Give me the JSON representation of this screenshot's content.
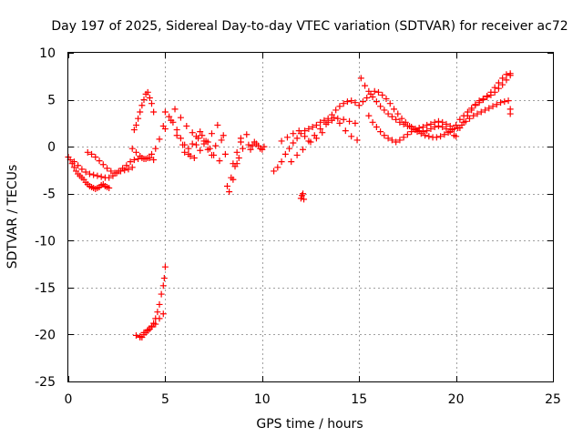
{
  "chart_data": {
    "type": "scatter",
    "title": "Day 197 of 2025, Sidereal Day-to-day VTEC variation (SDTVAR) for receiver ac72",
    "xlabel": "GPS time / hours",
    "ylabel": "SDTVAR / TECUs",
    "xlim": [
      0,
      25
    ],
    "ylim": [
      -25,
      10
    ],
    "xticks": [
      0,
      5,
      10,
      15,
      20,
      25
    ],
    "yticks": [
      10,
      5,
      0,
      -5,
      -10,
      -15,
      -20,
      -25
    ],
    "xtick_labels": [
      "0",
      "5",
      "10",
      "15",
      "20",
      "25"
    ],
    "ytick_labels": [
      "10",
      "5",
      "0",
      "-5",
      "-10",
      "-15",
      "-20",
      "-25"
    ],
    "grid": true,
    "marker": "+",
    "series": [
      {
        "name": "SDTVAR",
        "color": "#ff0000",
        "x": [
          0.0,
          0.1,
          0.2,
          0.3,
          0.4,
          0.5,
          0.6,
          0.7,
          0.8,
          0.9,
          1.0,
          1.1,
          1.2,
          1.3,
          1.4,
          1.5,
          1.6,
          1.7,
          1.8,
          1.9,
          2.0,
          2.1,
          0.3,
          0.5,
          0.7,
          0.9,
          1.1,
          1.3,
          1.5,
          1.7,
          1.9,
          2.1,
          2.3,
          2.5,
          2.7,
          2.9,
          3.1,
          3.3,
          1.0,
          1.2,
          1.4,
          1.6,
          1.8,
          2.0,
          2.2,
          2.4,
          2.6,
          2.8,
          3.0,
          3.2,
          3.4,
          3.6,
          3.8,
          4.0,
          4.2,
          4.4,
          3.4,
          3.5,
          3.6,
          3.7,
          3.8,
          3.9,
          4.0,
          4.1,
          4.2,
          4.3,
          4.4,
          3.5,
          3.7,
          3.9,
          4.1,
          4.3,
          4.5,
          4.7,
          4.9,
          3.7,
          3.8,
          3.9,
          4.0,
          4.1,
          4.2,
          4.3,
          4.4,
          4.5,
          4.6,
          4.7,
          4.8,
          4.9,
          4.95,
          5.0,
          3.3,
          3.5,
          3.7,
          3.9,
          4.1,
          4.3,
          4.5,
          4.7,
          4.9,
          5.0,
          5.2,
          5.4,
          5.6,
          5.8,
          6.0,
          6.2,
          6.4,
          6.6,
          6.8,
          7.0,
          7.2,
          7.4,
          5.0,
          5.3,
          5.6,
          5.9,
          6.2,
          6.5,
          6.8,
          7.1,
          7.4,
          7.7,
          8.0,
          5.5,
          5.8,
          6.1,
          6.4,
          6.7,
          7.0,
          7.3,
          7.6,
          7.9,
          6.0,
          6.3,
          6.6,
          6.9,
          7.2,
          7.5,
          7.8,
          8.1,
          8.2,
          8.4,
          8.6,
          8.8,
          9.0,
          8.3,
          8.5,
          8.7,
          8.9,
          8.5,
          8.7,
          8.9,
          9.2,
          9.3,
          9.4,
          9.5,
          9.6,
          9.7,
          9.8,
          9.9,
          10.0,
          10.1,
          10.6,
          10.8,
          11.0,
          11.2,
          11.4,
          11.6,
          11.8,
          12.0,
          12.2,
          12.4,
          12.6,
          12.8,
          13.0,
          13.2,
          13.4,
          13.6,
          13.8,
          14.0,
          14.2,
          14.4,
          14.6,
          14.8,
          15.0,
          11.0,
          11.3,
          11.6,
          11.9,
          12.2,
          12.5,
          12.8,
          13.1,
          13.4,
          13.7,
          14.0,
          14.3,
          14.6,
          14.9,
          11.5,
          11.8,
          12.1,
          12.4,
          12.7,
          13.0,
          13.3,
          13.6,
          13.9,
          14.2,
          14.5,
          14.8,
          12.0,
          12.05,
          12.1,
          12.15,
          15.1,
          15.3,
          15.5,
          15.7,
          15.9,
          16.1,
          16.3,
          16.5,
          16.7,
          16.9,
          17.1,
          17.3,
          17.5,
          17.7,
          17.9,
          18.1,
          18.3,
          18.5,
          18.7,
          18.9,
          19.1,
          19.3,
          19.5,
          19.7,
          19.9,
          15.5,
          15.7,
          15.9,
          16.1,
          16.3,
          16.5,
          16.7,
          16.9,
          17.1,
          17.3,
          17.5,
          17.7,
          17.9,
          18.1,
          18.3,
          18.5,
          18.7,
          18.9,
          19.1,
          19.3,
          19.5,
          19.7,
          19.9,
          15.2,
          15.4,
          15.6,
          15.8,
          16.0,
          16.2,
          16.4,
          16.6,
          16.8,
          17.0,
          17.2,
          17.4,
          17.6,
          17.8,
          18.0,
          18.2,
          18.4,
          18.6,
          18.8,
          19.0,
          19.2,
          19.4,
          19.6,
          19.8,
          20.0,
          20.2,
          20.4,
          20.6,
          20.8,
          21.0,
          21.2,
          21.4,
          21.6,
          21.8,
          22.0,
          22.2,
          22.4,
          22.6,
          22.8,
          20.0,
          20.2,
          20.4,
          20.6,
          20.8,
          21.0,
          21.2,
          21.4,
          21.6,
          21.8,
          22.0,
          22.2,
          22.4,
          22.6,
          22.8,
          20.1,
          20.3,
          20.5,
          20.7,
          20.9,
          21.1,
          21.3,
          21.5,
          21.7,
          21.9,
          22.1,
          22.3,
          22.5,
          22.7,
          22.8,
          22.8
        ],
        "y": [
          -1.1,
          -1.4,
          -1.8,
          -2.2,
          -2.6,
          -2.9,
          -3.1,
          -3.3,
          -3.5,
          -3.8,
          -4.0,
          -4.2,
          -4.3,
          -4.4,
          -4.5,
          -4.4,
          -4.3,
          -4.1,
          -4.0,
          -4.2,
          -4.3,
          -4.4,
          -1.6,
          -2.0,
          -2.4,
          -2.7,
          -2.9,
          -3.0,
          -3.1,
          -3.2,
          -3.3,
          -3.3,
          -3.1,
          -2.8,
          -2.6,
          -2.5,
          -2.4,
          -2.2,
          -0.6,
          -0.8,
          -1.1,
          -1.5,
          -1.9,
          -2.3,
          -2.6,
          -2.8,
          -2.6,
          -2.3,
          -2.0,
          -1.6,
          -1.4,
          -1.3,
          -1.2,
          -1.3,
          -1.2,
          -1.4,
          1.8,
          2.3,
          3.0,
          3.7,
          4.4,
          5.0,
          5.6,
          5.8,
          5.2,
          4.6,
          3.7,
          -20.1,
          -20.3,
          -19.8,
          -19.5,
          -19.2,
          -18.9,
          -18.3,
          -17.8,
          -20.2,
          -20.3,
          -20.0,
          -19.8,
          -19.6,
          -19.4,
          -19.1,
          -18.8,
          -18.3,
          -17.6,
          -16.8,
          -15.7,
          -14.8,
          -14.0,
          -12.8,
          -0.2,
          -0.6,
          -1.0,
          -1.3,
          -1.2,
          -0.8,
          -0.2,
          0.8,
          2.2,
          3.7,
          3.2,
          2.6,
          1.8,
          0.9,
          0.2,
          -0.2,
          0.3,
          1.1,
          1.6,
          0.6,
          -0.3,
          -0.9,
          1.9,
          2.8,
          1.2,
          0.2,
          -0.8,
          -1.2,
          -0.4,
          0.6,
          1.4,
          2.3,
          1.2,
          4.0,
          3.1,
          2.2,
          1.5,
          0.9,
          0.3,
          -0.2,
          0.1,
          0.7,
          -0.6,
          -1.0,
          0.2,
          1.2,
          0.5,
          -0.9,
          -1.5,
          -0.8,
          -4.2,
          -3.3,
          -2.1,
          -1.2,
          -0.2,
          -4.8,
          -3.5,
          -1.8,
          0.5,
          -1.8,
          -0.6,
          0.9,
          1.3,
          0.2,
          -0.3,
          0.1,
          0.5,
          0.3,
          0.1,
          -0.2,
          -0.3,
          0.0,
          -2.6,
          -2.2,
          -1.6,
          -0.8,
          -0.2,
          0.4,
          0.9,
          1.4,
          1.7,
          1.9,
          2.1,
          2.3,
          2.6,
          2.8,
          3.0,
          3.4,
          3.9,
          4.3,
          4.6,
          4.8,
          4.9,
          4.7,
          4.4,
          0.6,
          1.0,
          1.4,
          1.7,
          1.1,
          0.5,
          0.9,
          1.5,
          2.6,
          3.1,
          2.5,
          1.7,
          1.1,
          0.7,
          -1.6,
          -0.9,
          -0.3,
          0.6,
          1.2,
          1.9,
          2.4,
          2.8,
          3.0,
          2.9,
          2.7,
          2.5,
          -5.5,
          -5.2,
          -5.0,
          -5.6,
          7.3,
          6.5,
          5.9,
          5.3,
          4.8,
          4.3,
          3.9,
          3.5,
          3.2,
          2.9,
          2.6,
          2.4,
          2.2,
          2.1,
          1.9,
          1.7,
          1.6,
          1.7,
          1.9,
          2.1,
          2.2,
          2.1,
          1.9,
          1.6,
          1.2,
          3.3,
          2.6,
          2.1,
          1.6,
          1.2,
          0.9,
          0.7,
          0.5,
          0.7,
          1.0,
          1.3,
          1.6,
          1.8,
          2.0,
          2.1,
          2.3,
          2.4,
          2.6,
          2.7,
          2.6,
          2.4,
          2.2,
          1.9,
          4.8,
          5.2,
          5.6,
          5.9,
          5.8,
          5.5,
          5.1,
          4.6,
          4.0,
          3.5,
          3.0,
          2.6,
          2.2,
          1.9,
          1.6,
          1.4,
          1.2,
          1.1,
          1.0,
          1.0,
          1.1,
          1.3,
          1.5,
          1.8,
          1.1,
          2.0,
          2.6,
          3.3,
          3.9,
          4.4,
          4.7,
          5.0,
          5.4,
          5.8,
          6.3,
          6.8,
          7.3,
          7.7,
          7.8,
          2.3,
          2.9,
          3.3,
          3.7,
          4.1,
          4.5,
          4.9,
          5.1,
          5.3,
          5.5,
          5.8,
          6.2,
          6.6,
          7.1,
          7.6,
          2.0,
          2.3,
          2.7,
          3.0,
          3.3,
          3.5,
          3.7,
          3.9,
          4.1,
          4.3,
          4.5,
          4.7,
          4.8,
          4.9,
          3.5,
          4.0
        ]
      }
    ]
  }
}
